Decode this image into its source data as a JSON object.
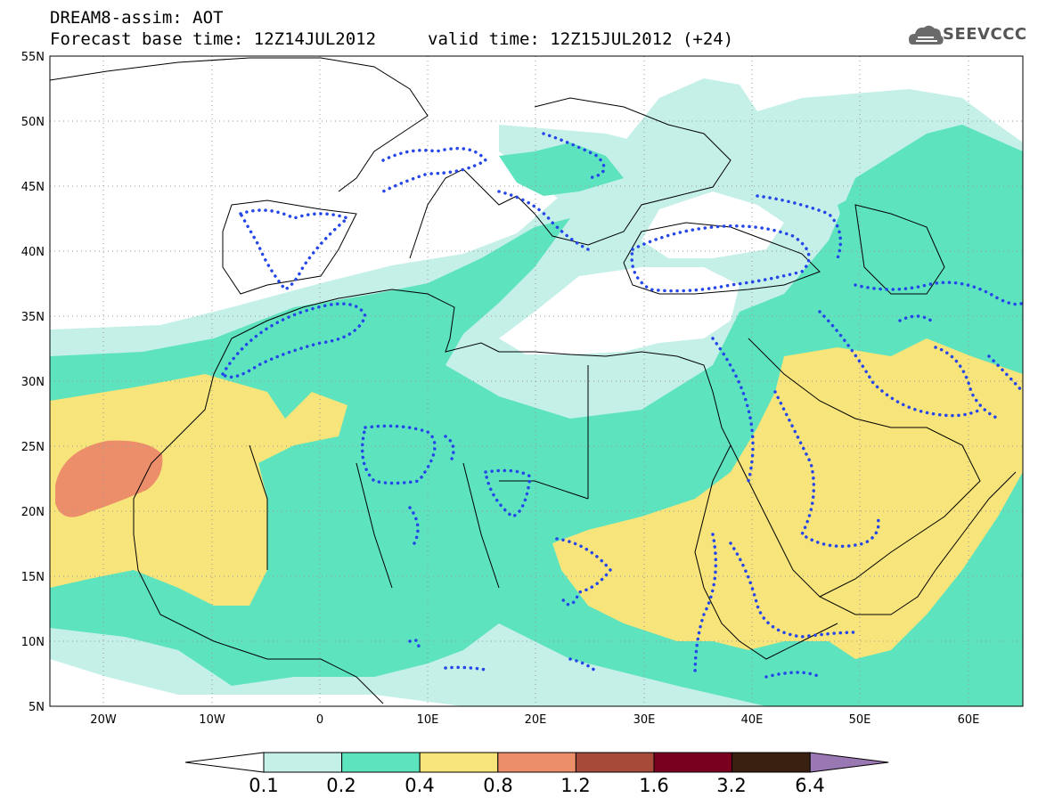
{
  "header": {
    "line1": "DREAM8-assim: AOT",
    "line2": "Forecast base time: 12Z14JUL2012",
    "valid": "valid time: 12Z15JUL2012 (+24)",
    "logo_text": "SEEVCCC",
    "logo_icon": "cloud-icon"
  },
  "map": {
    "projection": "lat-lon",
    "lon_range": [
      -25,
      65
    ],
    "lat_range": [
      5,
      55
    ],
    "lat_ticks": [
      "55N",
      "50N",
      "45N",
      "40N",
      "35N",
      "30N",
      "25N",
      "20N",
      "15N",
      "10N",
      "5N"
    ],
    "lon_ticks": [
      "20W",
      "10W",
      "0",
      "10E",
      "20E",
      "30E",
      "40E",
      "50E",
      "60E"
    ],
    "grid": "dotted",
    "contour_style": "blue dotted"
  },
  "legend": {
    "colors": [
      "#ffffff",
      "#c4f0e8",
      "#5ee3bf",
      "#f7e47a",
      "#ec8e6a",
      "#a84a3a",
      "#7a0020",
      "#3a2010",
      "#9a78b4"
    ],
    "labels": [
      "0.1",
      "0.2",
      "0.4",
      "0.8",
      "1.2",
      "1.6",
      "3.2",
      "6.4"
    ]
  }
}
